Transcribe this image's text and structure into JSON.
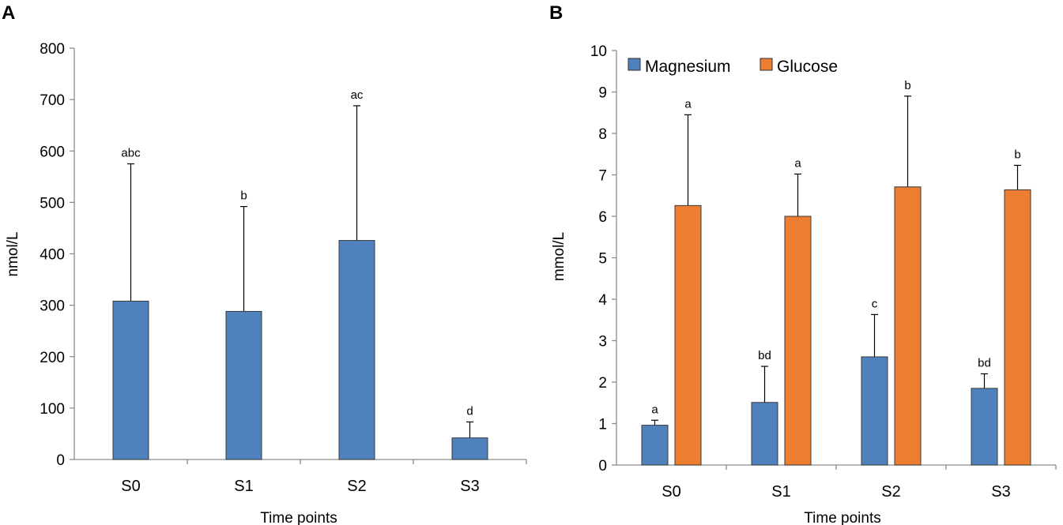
{
  "chart_data": [
    {
      "type": "bar",
      "panel_label": "A",
      "categories": [
        "S0",
        "S1",
        "S2",
        "S3"
      ],
      "series": [
        {
          "name": "nmol/L",
          "color": "#4F81BD",
          "values": [
            308,
            288,
            426,
            42
          ],
          "error_upper": [
            575,
            492,
            688,
            73
          ],
          "labels": [
            "abc",
            "b",
            "ac",
            "d"
          ]
        }
      ],
      "xlabel": "Time points",
      "ylabel": "nmol/L",
      "ylim": [
        0,
        800
      ],
      "yticks": [
        "0",
        "100",
        "200",
        "300",
        "400",
        "500",
        "600",
        "700",
        "800"
      ],
      "legend": false,
      "grid": false
    },
    {
      "type": "bar",
      "panel_label": "B",
      "categories": [
        "S0",
        "S1",
        "S2",
        "S3"
      ],
      "series": [
        {
          "name": "Magnesium",
          "color": "#4F81BD",
          "values": [
            0.96,
            1.51,
            2.61,
            1.85
          ],
          "error_upper": [
            1.08,
            2.38,
            3.63,
            2.2
          ],
          "labels": [
            "a",
            "bd",
            "c",
            "bd"
          ]
        },
        {
          "name": "Glucose",
          "color": "#ED7D31",
          "values": [
            6.26,
            6.0,
            6.71,
            6.64
          ],
          "error_upper": [
            8.45,
            7.02,
            8.9,
            7.23
          ],
          "labels": [
            "a",
            "a",
            "b",
            "b"
          ]
        }
      ],
      "xlabel": "Time points",
      "ylabel": "mmol/L",
      "ylim": [
        0,
        10
      ],
      "yticks": [
        "0",
        "1",
        "2",
        "3",
        "4",
        "5",
        "6",
        "7",
        "8",
        "9",
        "10"
      ],
      "legend": "top-left",
      "grid": false
    }
  ]
}
